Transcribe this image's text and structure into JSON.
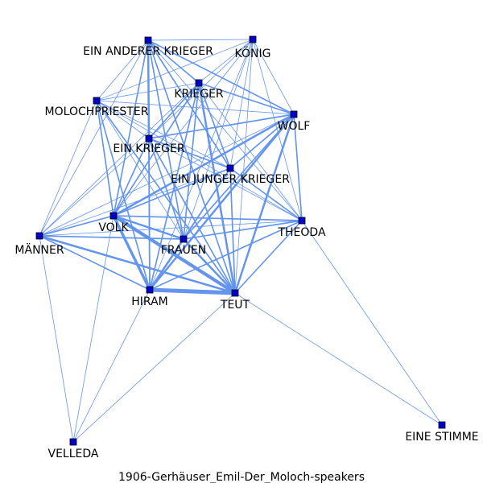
{
  "caption": "1906-Gerhäuser_Emil-Der_Moloch-speakers",
  "colors": {
    "edge": "#6495ED",
    "node_fill": "#0000CD",
    "node_stroke": "#000000",
    "label": "#000000",
    "background": "#ffffff"
  },
  "nodes": [
    {
      "id": "ein-anderer-krieger",
      "label": "EIN ANDERER KRIEGER"
    },
    {
      "id": "koenig",
      "label": "KÖNIG"
    },
    {
      "id": "krieger",
      "label": "KRIEGER"
    },
    {
      "id": "molochpriester",
      "label": "MOLOCHPRIESTER"
    },
    {
      "id": "wolf",
      "label": "WOLF"
    },
    {
      "id": "ein-krieger",
      "label": "EIN KRIEGER"
    },
    {
      "id": "ein-junger-krieger",
      "label": "EIN JUNGER KRIEGER"
    },
    {
      "id": "volk",
      "label": "VOLK"
    },
    {
      "id": "theoda",
      "label": "THEODA"
    },
    {
      "id": "maenner",
      "label": "MÄNNER"
    },
    {
      "id": "frauen",
      "label": "FRAUEN"
    },
    {
      "id": "hiram",
      "label": "HIRAM"
    },
    {
      "id": "teut",
      "label": "TEUT"
    },
    {
      "id": "velleda",
      "label": "VELLEDA"
    },
    {
      "id": "eine-stimme",
      "label": "EINE STIMME"
    }
  ],
  "edges": [
    {
      "source": "ein-anderer-krieger",
      "target": "koenig",
      "weight": 1
    },
    {
      "source": "ein-anderer-krieger",
      "target": "krieger",
      "weight": 2
    },
    {
      "source": "ein-anderer-krieger",
      "target": "molochpriester",
      "weight": 1
    },
    {
      "source": "ein-anderer-krieger",
      "target": "wolf",
      "weight": 2
    },
    {
      "source": "ein-anderer-krieger",
      "target": "ein-krieger",
      "weight": 3
    },
    {
      "source": "ein-anderer-krieger",
      "target": "ein-junger-krieger",
      "weight": 2
    },
    {
      "source": "ein-anderer-krieger",
      "target": "volk",
      "weight": 2
    },
    {
      "source": "ein-anderer-krieger",
      "target": "frauen",
      "weight": 2
    },
    {
      "source": "ein-anderer-krieger",
      "target": "hiram",
      "weight": 2
    },
    {
      "source": "ein-anderer-krieger",
      "target": "teut",
      "weight": 2
    },
    {
      "source": "ein-anderer-krieger",
      "target": "theoda",
      "weight": 1
    },
    {
      "source": "ein-anderer-krieger",
      "target": "maenner",
      "weight": 1
    },
    {
      "source": "koenig",
      "target": "krieger",
      "weight": 1
    },
    {
      "source": "koenig",
      "target": "molochpriester",
      "weight": 1
    },
    {
      "source": "koenig",
      "target": "wolf",
      "weight": 1
    },
    {
      "source": "koenig",
      "target": "ein-krieger",
      "weight": 1
    },
    {
      "source": "koenig",
      "target": "ein-junger-krieger",
      "weight": 1
    },
    {
      "source": "koenig",
      "target": "volk",
      "weight": 1
    },
    {
      "source": "koenig",
      "target": "frauen",
      "weight": 1
    },
    {
      "source": "koenig",
      "target": "hiram",
      "weight": 1
    },
    {
      "source": "koenig",
      "target": "teut",
      "weight": 1
    },
    {
      "source": "koenig",
      "target": "theoda",
      "weight": 1
    },
    {
      "source": "krieger",
      "target": "molochpriester",
      "weight": 1
    },
    {
      "source": "krieger",
      "target": "wolf",
      "weight": 2
    },
    {
      "source": "krieger",
      "target": "ein-krieger",
      "weight": 2
    },
    {
      "source": "krieger",
      "target": "ein-junger-krieger",
      "weight": 2
    },
    {
      "source": "krieger",
      "target": "volk",
      "weight": 2
    },
    {
      "source": "krieger",
      "target": "frauen",
      "weight": 2
    },
    {
      "source": "krieger",
      "target": "hiram",
      "weight": 2
    },
    {
      "source": "krieger",
      "target": "teut",
      "weight": 3
    },
    {
      "source": "krieger",
      "target": "theoda",
      "weight": 1
    },
    {
      "source": "krieger",
      "target": "maenner",
      "weight": 1
    },
    {
      "source": "molochpriester",
      "target": "wolf",
      "weight": 1
    },
    {
      "source": "molochpriester",
      "target": "ein-krieger",
      "weight": 1
    },
    {
      "source": "molochpriester",
      "target": "ein-junger-krieger",
      "weight": 1
    },
    {
      "source": "molochpriester",
      "target": "volk",
      "weight": 2
    },
    {
      "source": "molochpriester",
      "target": "maenner",
      "weight": 1
    },
    {
      "source": "molochpriester",
      "target": "frauen",
      "weight": 1
    },
    {
      "source": "molochpriester",
      "target": "hiram",
      "weight": 2
    },
    {
      "source": "molochpriester",
      "target": "teut",
      "weight": 2
    },
    {
      "source": "molochpriester",
      "target": "theoda",
      "weight": 1
    },
    {
      "source": "wolf",
      "target": "ein-krieger",
      "weight": 2
    },
    {
      "source": "wolf",
      "target": "ein-junger-krieger",
      "weight": 2
    },
    {
      "source": "wolf",
      "target": "volk",
      "weight": 3
    },
    {
      "source": "wolf",
      "target": "frauen",
      "weight": 2
    },
    {
      "source": "wolf",
      "target": "hiram",
      "weight": 3
    },
    {
      "source": "wolf",
      "target": "teut",
      "weight": 3
    },
    {
      "source": "wolf",
      "target": "theoda",
      "weight": 2
    },
    {
      "source": "wolf",
      "target": "maenner",
      "weight": 1
    },
    {
      "source": "ein-krieger",
      "target": "ein-junger-krieger",
      "weight": 2
    },
    {
      "source": "ein-krieger",
      "target": "volk",
      "weight": 2
    },
    {
      "source": "ein-krieger",
      "target": "frauen",
      "weight": 2
    },
    {
      "source": "ein-krieger",
      "target": "hiram",
      "weight": 2
    },
    {
      "source": "ein-krieger",
      "target": "teut",
      "weight": 2
    },
    {
      "source": "ein-krieger",
      "target": "theoda",
      "weight": 1
    },
    {
      "source": "ein-krieger",
      "target": "maenner",
      "weight": 1
    },
    {
      "source": "ein-junger-krieger",
      "target": "volk",
      "weight": 2
    },
    {
      "source": "ein-junger-krieger",
      "target": "frauen",
      "weight": 2
    },
    {
      "source": "ein-junger-krieger",
      "target": "hiram",
      "weight": 2
    },
    {
      "source": "ein-junger-krieger",
      "target": "teut",
      "weight": 2
    },
    {
      "source": "ein-junger-krieger",
      "target": "theoda",
      "weight": 2
    },
    {
      "source": "ein-junger-krieger",
      "target": "maenner",
      "weight": 1
    },
    {
      "source": "volk",
      "target": "maenner",
      "weight": 2
    },
    {
      "source": "volk",
      "target": "frauen",
      "weight": 3
    },
    {
      "source": "volk",
      "target": "hiram",
      "weight": 4
    },
    {
      "source": "volk",
      "target": "teut",
      "weight": 5
    },
    {
      "source": "volk",
      "target": "theoda",
      "weight": 2
    },
    {
      "source": "volk",
      "target": "velleda",
      "weight": 1
    },
    {
      "source": "maenner",
      "target": "frauen",
      "weight": 2
    },
    {
      "source": "maenner",
      "target": "hiram",
      "weight": 2
    },
    {
      "source": "maenner",
      "target": "teut",
      "weight": 3
    },
    {
      "source": "maenner",
      "target": "theoda",
      "weight": 1
    },
    {
      "source": "maenner",
      "target": "velleda",
      "weight": 1
    },
    {
      "source": "frauen",
      "target": "hiram",
      "weight": 3
    },
    {
      "source": "frauen",
      "target": "teut",
      "weight": 3
    },
    {
      "source": "frauen",
      "target": "theoda",
      "weight": 2
    },
    {
      "source": "hiram",
      "target": "teut",
      "weight": 6
    },
    {
      "source": "hiram",
      "target": "theoda",
      "weight": 2
    },
    {
      "source": "hiram",
      "target": "velleda",
      "weight": 1
    },
    {
      "source": "teut",
      "target": "theoda",
      "weight": 2
    },
    {
      "source": "teut",
      "target": "velleda",
      "weight": 1
    },
    {
      "source": "teut",
      "target": "eine-stimme",
      "weight": 1
    },
    {
      "source": "theoda",
      "target": "eine-stimme",
      "weight": 1
    }
  ]
}
